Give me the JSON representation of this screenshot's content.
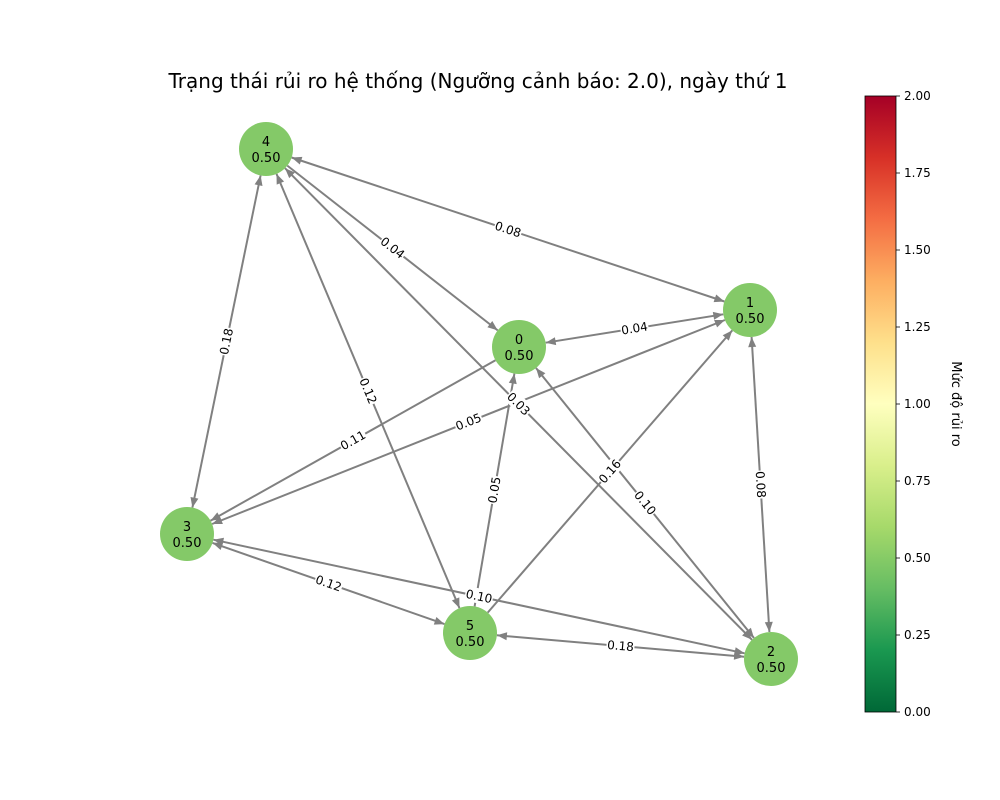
{
  "title": "Trạng thái rủi ro hệ thống (Ngưỡng cảnh báo: 2.0), ngày thứ 1",
  "node_color": "#84c968",
  "edge_color": "#808080",
  "nodes": [
    {
      "id": "0",
      "value": "0.50"
    },
    {
      "id": "1",
      "value": "0.50"
    },
    {
      "id": "2",
      "value": "0.50"
    },
    {
      "id": "3",
      "value": "0.50"
    },
    {
      "id": "4",
      "value": "0.50"
    },
    {
      "id": "5",
      "value": "0.50"
    }
  ],
  "edges": [
    {
      "from": "4",
      "to": "1",
      "label": "0.08",
      "bidirectional": true
    },
    {
      "from": "4",
      "to": "0",
      "label": "0.04",
      "bidirectional": false
    },
    {
      "from": "4",
      "to": "3",
      "label": "0.18",
      "bidirectional": true
    },
    {
      "from": "5",
      "to": "4",
      "label": "0.12",
      "bidirectional": true
    },
    {
      "from": "2",
      "to": "4",
      "label": "0.03",
      "bidirectional": true
    },
    {
      "from": "1",
      "to": "0",
      "label": "0.04",
      "bidirectional": true
    },
    {
      "from": "0",
      "to": "3",
      "label": "0.11",
      "bidirectional": false
    },
    {
      "from": "1",
      "to": "3",
      "label": "0.05",
      "bidirectional": true
    },
    {
      "from": "5",
      "to": "0",
      "label": "0.05",
      "bidirectional": false
    },
    {
      "from": "5",
      "to": "1",
      "label": "0.16",
      "bidirectional": false
    },
    {
      "from": "0",
      "to": "2",
      "label": "0.10",
      "bidirectional": true
    },
    {
      "from": "1",
      "to": "2",
      "label": "0.08",
      "bidirectional": true
    },
    {
      "from": "3",
      "to": "5",
      "label": "0.12",
      "bidirectional": true
    },
    {
      "from": "3",
      "to": "2",
      "label": "0.10",
      "bidirectional": true
    },
    {
      "from": "5",
      "to": "2",
      "label": "0.18",
      "bidirectional": true
    }
  ],
  "colorbar": {
    "label": "Mức độ rủi ro",
    "min": 0,
    "max": 2,
    "ticks": [
      "0.00",
      "0.25",
      "0.50",
      "0.75",
      "1.00",
      "1.25",
      "1.50",
      "1.75",
      "2.00"
    ],
    "colors": [
      "#006837",
      "#1a9850",
      "#66bd63",
      "#a6d96a",
      "#d9ef8b",
      "#ffffbf",
      "#fee08b",
      "#fdae61",
      "#f46d43",
      "#d73027",
      "#a50026"
    ]
  }
}
